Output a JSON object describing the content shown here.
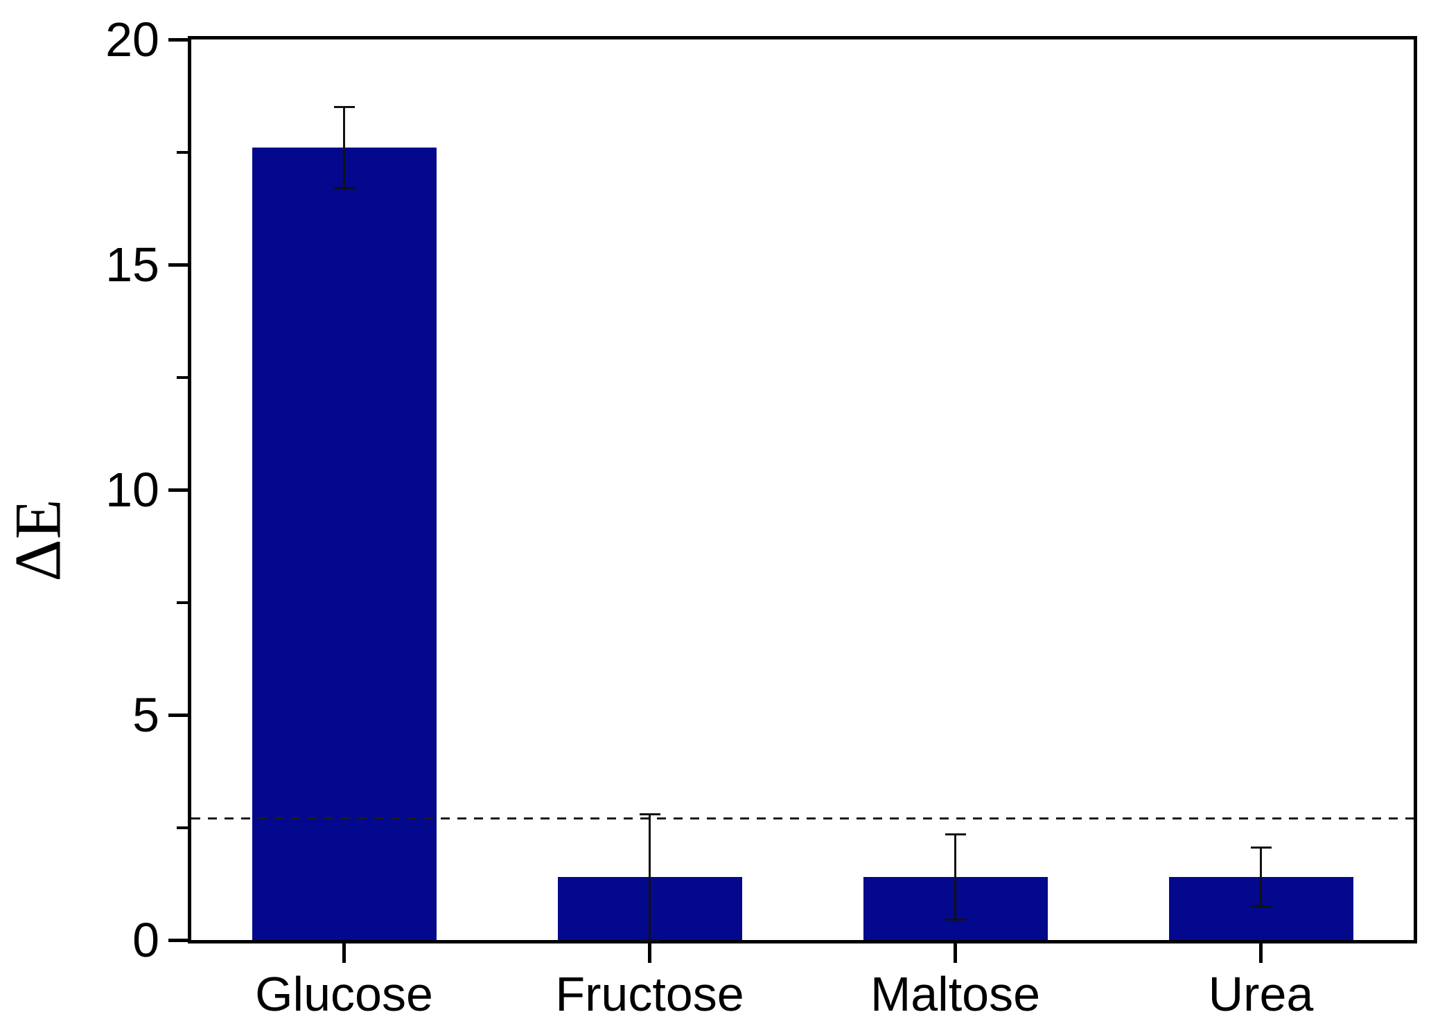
{
  "chart_data": {
    "type": "bar",
    "ylabel": "ΔE",
    "categories": [
      "Glucose",
      "Fructose",
      "Maltose",
      "Urea"
    ],
    "values": [
      17.6,
      1.4,
      1.4,
      1.4
    ],
    "errors": [
      0.9,
      1.4,
      0.95,
      0.65
    ],
    "threshold": 2.7,
    "ylim": [
      0,
      20
    ],
    "yticks_major": [
      0,
      5,
      10,
      15,
      20
    ],
    "yticks_minor": [
      2.5,
      7.5,
      12.5,
      17.5
    ],
    "bar_color": "#04088c",
    "error_bar_color": "#111111",
    "threshold_color": "#1b1b1b",
    "axis_color": "#000000",
    "grid": false,
    "legend_position": "none"
  }
}
